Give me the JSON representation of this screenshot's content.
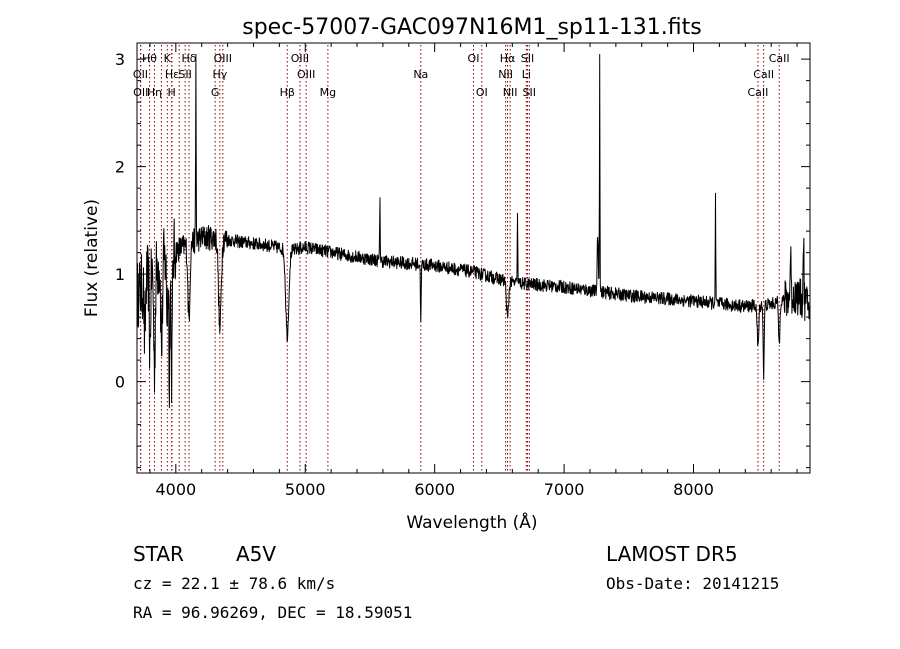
{
  "chart_data": {
    "type": "line",
    "title": "spec-57007-GAC097N16M1_sp11-131.fits",
    "xlabel": "Wavelength (Å)",
    "ylabel": "Flux (relative)",
    "xlim": [
      3700,
      8900
    ],
    "ylim": [
      -0.85,
      3.15
    ],
    "x_ticks": [
      4000,
      5000,
      6000,
      7000,
      8000
    ],
    "y_ticks": [
      0,
      1,
      2,
      3
    ],
    "grid": false,
    "line_color": "#000000",
    "marker_color": "#8b0000",
    "continuum_knots": [
      [
        3700,
        0.8
      ],
      [
        3800,
        1.0
      ],
      [
        3900,
        1.12
      ],
      [
        4000,
        1.22
      ],
      [
        4100,
        1.28
      ],
      [
        4200,
        1.34
      ],
      [
        4300,
        1.34
      ],
      [
        4500,
        1.3
      ],
      [
        4700,
        1.27
      ],
      [
        4900,
        1.22
      ],
      [
        5000,
        1.25
      ],
      [
        5300,
        1.18
      ],
      [
        5600,
        1.12
      ],
      [
        6000,
        1.08
      ],
      [
        6300,
        1.02
      ],
      [
        6600,
        0.92
      ],
      [
        7000,
        0.88
      ],
      [
        7500,
        0.8
      ],
      [
        8000,
        0.75
      ],
      [
        8400,
        0.7
      ],
      [
        8600,
        0.72
      ],
      [
        8800,
        0.8
      ],
      [
        8900,
        0.7
      ]
    ],
    "features": [
      {
        "x": 3760,
        "depth": 0.55,
        "width": 5
      },
      {
        "x": 3800,
        "depth": 0.7,
        "width": 5
      },
      {
        "x": 3835,
        "depth": 0.9,
        "width": 6
      },
      {
        "x": 3890,
        "depth": 0.8,
        "width": 6
      },
      {
        "x": 3933,
        "depth": 0.55,
        "width": 5
      },
      {
        "x": 3950,
        "depth": 1.1,
        "width": 4
      },
      {
        "x": 3968,
        "depth": 1.1,
        "width": 5
      },
      {
        "x": 4101,
        "depth": 0.7,
        "width": 8
      },
      {
        "x": 4155,
        "depth": -1.75,
        "width": 2
      },
      {
        "x": 4340,
        "depth": 0.85,
        "width": 10
      },
      {
        "x": 4861,
        "depth": 0.8,
        "width": 12
      },
      {
        "x": 5577,
        "depth": -0.65,
        "width": 2
      },
      {
        "x": 5893,
        "depth": 0.5,
        "width": 3
      },
      {
        "x": 6563,
        "depth": 0.35,
        "width": 8
      },
      {
        "x": 6640,
        "depth": -0.7,
        "width": 2
      },
      {
        "x": 7260,
        "depth": -0.55,
        "width": 4
      },
      {
        "x": 7275,
        "depth": -2.2,
        "width": 2
      },
      {
        "x": 8170,
        "depth": -1.0,
        "width": 2
      },
      {
        "x": 8498,
        "depth": 0.4,
        "width": 6
      },
      {
        "x": 8542,
        "depth": 0.65,
        "width": 4
      },
      {
        "x": 8662,
        "depth": 0.4,
        "width": 5
      },
      {
        "x": 8750,
        "depth": -0.5,
        "width": 3
      },
      {
        "x": 8850,
        "depth": -0.6,
        "width": 3
      }
    ],
    "spectral_lines": [
      {
        "label": "Hθ",
        "x": 3797,
        "row": 0
      },
      {
        "label": "K",
        "x": 3934,
        "row": 0
      },
      {
        "label": "Hδ",
        "x": 4102,
        "row": 0
      },
      {
        "label": "OIII",
        "x": 4363,
        "row": 0
      },
      {
        "label": "OIII",
        "x": 4959,
        "row": 0
      },
      {
        "label": "OI",
        "x": 6300,
        "row": 0
      },
      {
        "label": "Hα",
        "x": 6563,
        "row": 0
      },
      {
        "label": "SII",
        "x": 6717,
        "row": 0
      },
      {
        "label": "CaII",
        "x": 8662,
        "row": 0
      },
      {
        "label": "OII",
        "x": 3727,
        "row": 1
      },
      {
        "label": "Hε",
        "x": 3970,
        "row": 1
      },
      {
        "label": "SII",
        "x": 4072,
        "row": 1
      },
      {
        "label": "Hγ",
        "x": 4340,
        "row": 1
      },
      {
        "label": "OIII",
        "x": 5007,
        "row": 1
      },
      {
        "label": "Na",
        "x": 5893,
        "row": 1
      },
      {
        "label": "NII",
        "x": 6548,
        "row": 1
      },
      {
        "label": "Li",
        "x": 6708,
        "row": 1
      },
      {
        "label": "CaII",
        "x": 8542,
        "row": 1
      },
      {
        "label": "OII",
        "x": 3729,
        "row": 2
      },
      {
        "label": "Hη",
        "x": 3835,
        "row": 2
      },
      {
        "label": "H",
        "x": 3968,
        "row": 2
      },
      {
        "label": "G",
        "x": 4304,
        "row": 2
      },
      {
        "label": "Hβ",
        "x": 4861,
        "row": 2
      },
      {
        "label": "Mg",
        "x": 5175,
        "row": 2
      },
      {
        "label": "OI",
        "x": 6364,
        "row": 2
      },
      {
        "label": "NII",
        "x": 6583,
        "row": 2
      },
      {
        "label": "SII",
        "x": 6731,
        "row": 2
      },
      {
        "label": "CaII",
        "x": 8498,
        "row": 2
      }
    ],
    "extra_line_markers": [
      3889,
      4026
    ]
  },
  "info": {
    "object_type": "STAR",
    "spectral_class": "A5V",
    "survey": "LAMOST DR5",
    "cz": "cz = 22.1 ± 78.6 km/s",
    "obs_date": "Obs-Date: 20141215",
    "coords": "RA =  96.96269, DEC =  18.59051"
  }
}
